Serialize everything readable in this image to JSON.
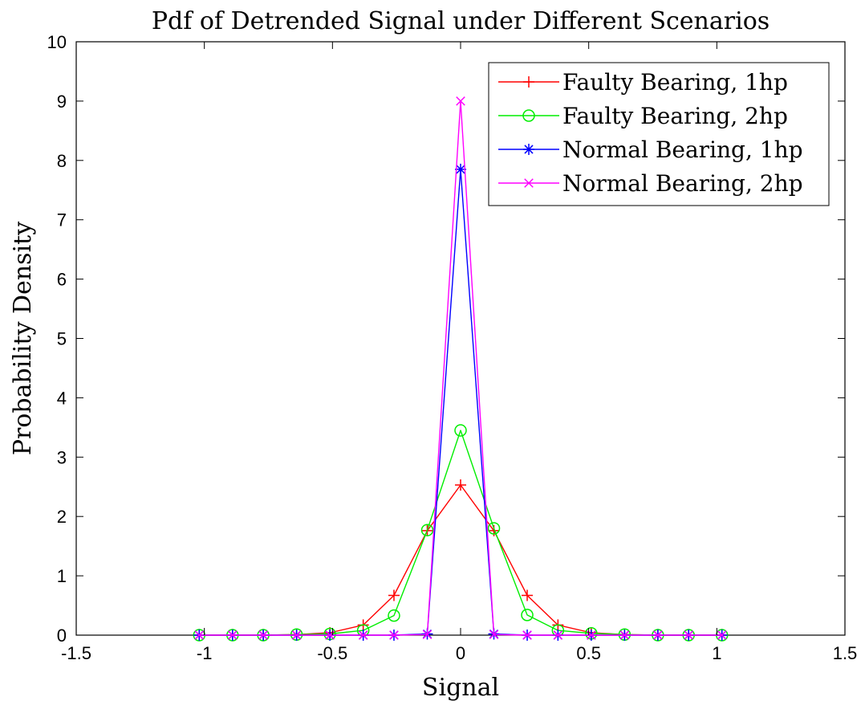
{
  "chart_data": {
    "type": "line",
    "title": "Pdf of Detrended Signal under Different Scenarios",
    "xlabel": "Signal",
    "ylabel": "Probability Density",
    "xlim": [
      -1.5,
      1.5
    ],
    "ylim": [
      0,
      10
    ],
    "xticks": [
      "-1.5",
      "-1",
      "-0.5",
      "0",
      "0.5",
      "1",
      "1.5"
    ],
    "yticks": [
      "0",
      "1",
      "2",
      "3",
      "4",
      "5",
      "6",
      "7",
      "8",
      "9",
      "10"
    ],
    "grid": false,
    "legend_position": "top-right",
    "series": [
      {
        "name": "Faulty Bearing, 1hp",
        "color": "#ff0000",
        "marker": "plus",
        "x": [
          -1.02,
          -0.89,
          -0.77,
          -0.64,
          -0.51,
          -0.38,
          -0.26,
          -0.13,
          0,
          0.13,
          0.26,
          0.38,
          0.51,
          0.64,
          0.77,
          0.89,
          1.02
        ],
        "y": [
          0.0,
          0.0,
          0.0,
          0.01,
          0.04,
          0.17,
          0.67,
          1.76,
          2.53,
          1.76,
          0.67,
          0.17,
          0.04,
          0.01,
          0.0,
          0.0,
          0.0
        ]
      },
      {
        "name": "Faulty Bearing, 2hp",
        "color": "#00ee00",
        "marker": "circle",
        "x": [
          -1.02,
          -0.89,
          -0.77,
          -0.64,
          -0.51,
          -0.38,
          -0.26,
          -0.13,
          0,
          0.13,
          0.26,
          0.38,
          0.51,
          0.64,
          0.77,
          0.89,
          1.02
        ],
        "y": [
          0.0,
          0.0,
          0.0,
          0.01,
          0.02,
          0.08,
          0.33,
          1.77,
          3.45,
          1.8,
          0.34,
          0.08,
          0.03,
          0.01,
          0.0,
          0.0,
          0.0
        ]
      },
      {
        "name": "Normal Bearing, 1hp",
        "color": "#0000ff",
        "marker": "asterisk",
        "x": [
          -1.02,
          -0.89,
          -0.77,
          -0.64,
          -0.51,
          -0.38,
          -0.26,
          -0.13,
          0,
          0.13,
          0.26,
          0.38,
          0.51,
          0.64,
          0.77,
          0.89,
          1.02
        ],
        "y": [
          0.0,
          0.0,
          0.0,
          0.0,
          0.0,
          0.0,
          0.0,
          0.02,
          7.85,
          0.02,
          0.0,
          0.0,
          0.0,
          0.0,
          0.0,
          0.0,
          0.0
        ]
      },
      {
        "name": "Normal Bearing, 2hp",
        "color": "#ff00ff",
        "marker": "x",
        "x": [
          -1.02,
          -0.89,
          -0.77,
          -0.64,
          -0.51,
          -0.38,
          -0.26,
          -0.13,
          0,
          0.13,
          0.26,
          0.38,
          0.51,
          0.64,
          0.77,
          0.89,
          1.02
        ],
        "y": [
          0.0,
          0.0,
          0.0,
          0.0,
          0.0,
          0.0,
          0.0,
          0.01,
          9.0,
          0.01,
          0.0,
          0.0,
          0.0,
          0.0,
          0.0,
          0.0,
          0.0
        ]
      }
    ]
  }
}
